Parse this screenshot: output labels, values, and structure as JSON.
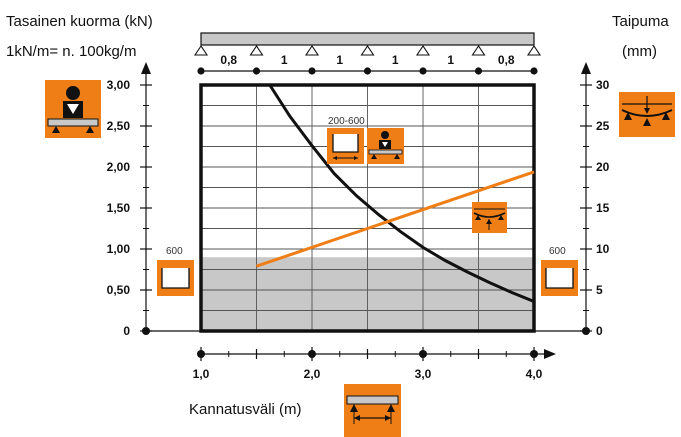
{
  "header": {
    "left_title": "Tasainen kuorma (kN)",
    "left_subtitle": "1kN/m= n. 100kg/m",
    "right_title": "Taipuma",
    "right_unit": "(mm)"
  },
  "xlabel": "Kannatusväli (m)",
  "beam_spans": [
    "0,8",
    "1",
    "1",
    "1",
    "1",
    "0,8"
  ],
  "icon_labels": {
    "profile_range": "200-600",
    "profile_left": "600",
    "profile_right": "600"
  },
  "colors": {
    "load_curve": "#111111",
    "deflection_line": "#f07e16",
    "icon_bg": "#f07e16",
    "shaded_area": "#c8c8c8",
    "grid": "#555555"
  },
  "icons": [
    "person-load-icon",
    "deflection-icon",
    "profile-icon",
    "span-icon"
  ],
  "chart_data": {
    "type": "line",
    "title": "",
    "xlabel": "Kannatusväli (m)",
    "ylabel": "Tasainen kuorma (kN)",
    "y2label": "Taipuma (mm)",
    "xlim": [
      1.0,
      4.0
    ],
    "ylim": [
      0,
      3.0
    ],
    "y2lim": [
      0,
      30
    ],
    "x_ticks": [
      "1,0",
      "2,0",
      "3,0",
      "4,0"
    ],
    "y_ticks": [
      "0",
      "0,50",
      "1,00",
      "1,50",
      "2,00",
      "2,50",
      "3,00"
    ],
    "y2_ticks": [
      "0",
      "5",
      "10",
      "15",
      "20",
      "25",
      "30"
    ],
    "grid": true,
    "shaded_region": {
      "x": [
        1.0,
        4.0
      ],
      "y": [
        0,
        0.9
      ]
    },
    "series": [
      {
        "axis": "left",
        "x": [
          1.62,
          1.8,
          2.0,
          2.2,
          2.4,
          2.6,
          2.8,
          3.0,
          3.2,
          3.4,
          3.6,
          3.8,
          4.0
        ],
        "values": [
          3.0,
          2.62,
          2.26,
          1.92,
          1.65,
          1.42,
          1.21,
          1.02,
          0.86,
          0.72,
          0.59,
          0.47,
          0.36
        ]
      },
      {
        "axis": "right",
        "x": [
          1.5,
          4.0
        ],
        "values": [
          7.9,
          19.4
        ]
      }
    ]
  }
}
